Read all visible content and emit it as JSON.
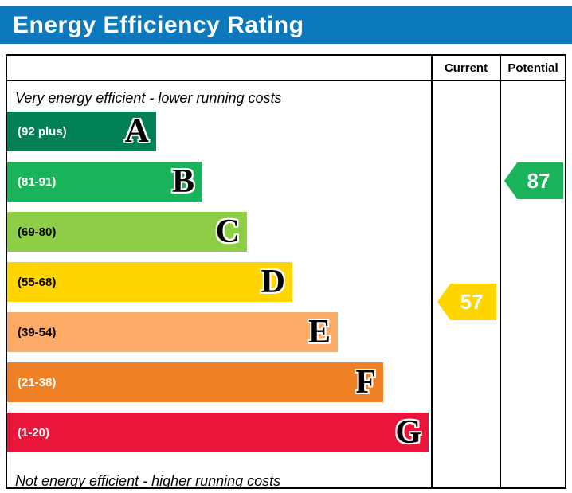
{
  "title": "Energy Efficiency Rating",
  "title_bar_color": "#0b79bc",
  "columns": {
    "current": "Current",
    "potential": "Potential"
  },
  "captions": {
    "top": "Very energy efficient - lower running costs",
    "bottom": "Not energy efficient - higher running costs"
  },
  "chart_data": {
    "type": "bar",
    "title": "Energy Efficiency Rating",
    "categories": [
      "A",
      "B",
      "C",
      "D",
      "E",
      "F",
      "G"
    ],
    "bands": [
      {
        "letter": "A",
        "range": "(92 plus)",
        "color": "#008054",
        "text_color": "#ffffff"
      },
      {
        "letter": "B",
        "range": "(81-91)",
        "color": "#19b459",
        "text_color": "#ffffff"
      },
      {
        "letter": "C",
        "range": "(69-80)",
        "color": "#8dce46",
        "text_color": "#000000"
      },
      {
        "letter": "D",
        "range": "(55-68)",
        "color": "#ffd500",
        "text_color": "#000000"
      },
      {
        "letter": "E",
        "range": "(39-54)",
        "color": "#fcaa65",
        "text_color": "#000000"
      },
      {
        "letter": "F",
        "range": "(21-38)",
        "color": "#ef8023",
        "text_color": "#ffffff"
      },
      {
        "letter": "G",
        "range": "(1-20)",
        "color": "#e9153b",
        "text_color": "#ffffff"
      }
    ],
    "current": {
      "value": "57",
      "band": "D",
      "color": "#ffd500"
    },
    "potential": {
      "value": "87",
      "band": "B",
      "color": "#19b459"
    }
  }
}
